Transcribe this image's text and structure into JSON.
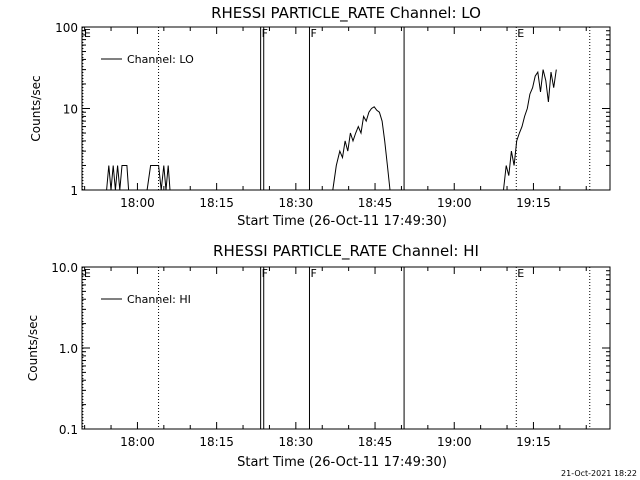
{
  "stamp": "21-Oct-2021 18:22",
  "chart_data": [
    {
      "type": "line",
      "title": "RHESSI PARTICLE_RATE Channel: LO",
      "xlabel": "Start Time (26-Oct-11 17:49:30)",
      "ylabel": "Counts/sec",
      "yscale": "log",
      "xlim": [
        "17:49:30",
        "19:29:30"
      ],
      "ylim": [
        1,
        100
      ],
      "x_tick_labels": [
        "18:00",
        "18:15",
        "18:30",
        "18:45",
        "19:00",
        "19:15"
      ],
      "y_tick_labels": [
        "1",
        "10",
        "100"
      ],
      "legend": {
        "entries": [
          "Channel: LO"
        ],
        "position": "top-left"
      },
      "markers": [
        {
          "label": "E",
          "time": "17:49:40",
          "style": "dotted"
        },
        {
          "label": "",
          "time": "18:04:00",
          "style": "dotted"
        },
        {
          "label": "F",
          "time": "18:23:20",
          "style": "solid"
        },
        {
          "label": "",
          "time": "18:23:55",
          "style": "solid"
        },
        {
          "label": "F",
          "time": "18:32:35",
          "style": "solid"
        },
        {
          "label": "",
          "time": "18:50:30",
          "style": "solid"
        },
        {
          "label": "E",
          "time": "19:11:45",
          "style": "dotted"
        },
        {
          "label": "",
          "time": "19:25:40",
          "style": "dotted"
        }
      ],
      "series": [
        {
          "name": "Channel: LO",
          "segments": [
            {
              "x": [
                "17:54:10",
                "17:54:35",
                "17:55:00",
                "17:55:25",
                "17:55:50",
                "17:56:15",
                "17:56:40",
                "17:57:05",
                "17:57:30",
                "17:58:00",
                "17:58:20"
              ],
              "y": [
                1,
                2,
                1,
                2,
                1,
                2,
                1,
                2,
                2,
                2,
                1
              ]
            },
            {
              "x": [
                "18:01:50",
                "18:02:30",
                "18:03:00",
                "18:04:00",
                "18:04:30",
                "18:05:00",
                "18:05:25",
                "18:05:50",
                "18:06:10"
              ],
              "y": [
                1,
                2,
                2,
                2,
                1,
                2,
                1,
                2,
                1
              ]
            },
            {
              "x": [
                "18:37:00",
                "18:37:40",
                "18:38:20",
                "18:38:50",
                "18:39:20",
                "18:39:50",
                "18:40:20",
                "18:40:50",
                "18:41:20",
                "18:41:50",
                "18:42:20",
                "18:42:50",
                "18:43:20",
                "18:43:50",
                "18:44:20",
                "18:44:50",
                "18:45:20",
                "18:45:50",
                "18:46:20",
                "18:46:50",
                "18:47:20",
                "18:47:50"
              ],
              "y": [
                1,
                2,
                3,
                2.5,
                4,
                3,
                5,
                4,
                5,
                6,
                5,
                8,
                7,
                9,
                10,
                10.5,
                9.5,
                9,
                7,
                4,
                2,
                1
              ]
            },
            {
              "x": [
                "19:09:20",
                "19:09:50",
                "19:10:20",
                "19:10:50",
                "19:11:20",
                "19:11:50",
                "19:12:20",
                "19:12:50",
                "19:13:20",
                "19:13:50",
                "19:14:20",
                "19:14:50",
                "19:15:20",
                "19:15:50",
                "19:16:20",
                "19:16:50",
                "19:17:20",
                "19:17:50",
                "19:18:20",
                "19:18:50",
                "19:19:20"
              ],
              "y": [
                1,
                2,
                1.5,
                3,
                2,
                4,
                5,
                6,
                8,
                10,
                15,
                18,
                25,
                28,
                16,
                30,
                22,
                12,
                28,
                18,
                30
              ]
            }
          ]
        }
      ]
    },
    {
      "type": "line",
      "title": "RHESSI PARTICLE_RATE Channel: HI",
      "xlabel": "Start Time (26-Oct-11 17:49:30)",
      "ylabel": "Counts/sec",
      "yscale": "log",
      "xlim": [
        "17:49:30",
        "19:29:30"
      ],
      "ylim": [
        0.1,
        10
      ],
      "x_tick_labels": [
        "18:00",
        "18:15",
        "18:30",
        "18:45",
        "19:00",
        "19:15"
      ],
      "y_tick_labels": [
        "0.1",
        "1.0",
        "10.0"
      ],
      "legend": {
        "entries": [
          "Channel: HI"
        ],
        "position": "top-left"
      },
      "markers": [
        {
          "label": "E",
          "time": "17:49:40",
          "style": "dotted"
        },
        {
          "label": "",
          "time": "18:04:00",
          "style": "dotted"
        },
        {
          "label": "F",
          "time": "18:23:20",
          "style": "solid"
        },
        {
          "label": "",
          "time": "18:23:55",
          "style": "solid"
        },
        {
          "label": "F",
          "time": "18:32:35",
          "style": "solid"
        },
        {
          "label": "",
          "time": "18:50:30",
          "style": "solid"
        },
        {
          "label": "E",
          "time": "19:11:45",
          "style": "dotted"
        },
        {
          "label": "",
          "time": "19:25:40",
          "style": "dotted"
        }
      ],
      "series": [
        {
          "name": "Channel: HI",
          "segments": []
        }
      ]
    }
  ]
}
